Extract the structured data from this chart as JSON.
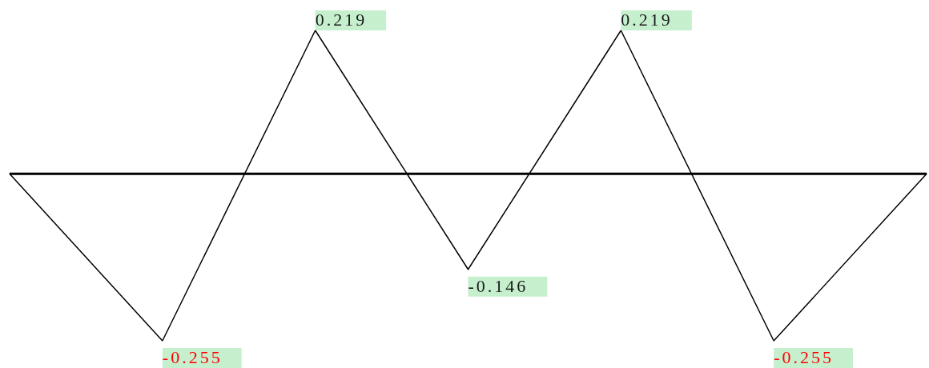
{
  "chart_data": {
    "type": "line",
    "categories": [
      null,
      null,
      null,
      null,
      null,
      null,
      null
    ],
    "values": [
      0,
      -0.255,
      0.219,
      -0.146,
      0.219,
      -0.255,
      0
    ],
    "color": "#000000",
    "value_labels": [
      null,
      "-0.255",
      "0.219",
      "-0.146",
      "0.219",
      "-0.255",
      null
    ],
    "ref_lines": [
      {
        "axis": "y",
        "value": 0,
        "color": "#000000"
      }
    ],
    "marker": "none",
    "line_style": "solid",
    "grid": false,
    "legend": false
  }
}
